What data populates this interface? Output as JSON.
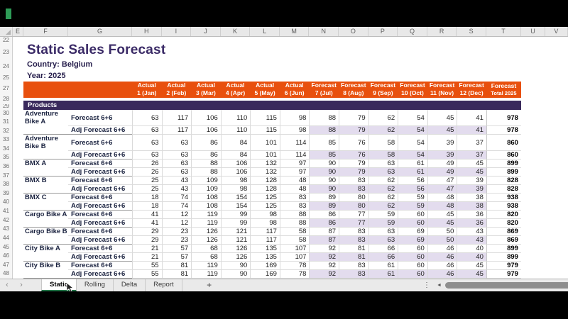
{
  "colors": {
    "accent_orange": "#E8500E",
    "accent_purple": "#3A2A5C",
    "title_text": "#3A2A66",
    "adj_fill": "#E3DCEE",
    "tab_active_green": "#217346"
  },
  "grid": {
    "columns": [
      "E",
      "F",
      "G",
      "H",
      "I",
      "J",
      "K",
      "L",
      "M",
      "N",
      "O",
      "P",
      "Q",
      "R",
      "S",
      "T",
      "U",
      "V"
    ],
    "row_numbers": [
      "22",
      "23",
      "24",
      "25",
      "27",
      "28",
      "29",
      "30",
      "31",
      "32",
      "33",
      "34",
      "35",
      "36",
      "37",
      "38",
      "39",
      "40",
      "41",
      "42",
      "43",
      "44",
      "45",
      "46",
      "47",
      "48"
    ]
  },
  "doc": {
    "title": "Static Sales Forecast",
    "country": "Country: Belgium",
    "year": "Year: 2025",
    "products_label": "Products"
  },
  "table": {
    "column_headers": [
      {
        "line1": "Actual",
        "line2": "1 (Jan)"
      },
      {
        "line1": "Actual",
        "line2": "2 (Feb)"
      },
      {
        "line1": "Actual",
        "line2": "3 (Mar)"
      },
      {
        "line1": "Actual",
        "line2": "4 (Apr)"
      },
      {
        "line1": "Actual",
        "line2": "5 (May)"
      },
      {
        "line1": "Actual",
        "line2": "6 (Jun)"
      },
      {
        "line1": "Forecast",
        "line2": "7 (Jul)"
      },
      {
        "line1": "Forecast",
        "line2": "8 (Aug)"
      },
      {
        "line1": "Forecast",
        "line2": "9 (Sep)"
      },
      {
        "line1": "Forecast",
        "line2": "10 (Oct)"
      },
      {
        "line1": "Forecast",
        "line2": "11 (Nov)"
      },
      {
        "line1": "Forecast",
        "line2": "12 (Dec)"
      }
    ],
    "total_header": {
      "line1": "Forecast",
      "line2": "Total 2025"
    },
    "products": [
      {
        "name": "Adventure Bike A",
        "forecast": {
          "label": "Forecast 6+6",
          "values": [
            63,
            117,
            106,
            110,
            115,
            98,
            88,
            79,
            62,
            54,
            45,
            41
          ],
          "total": 978
        },
        "adjusted": {
          "label": "Adj Forecast 6+6",
          "values": [
            63,
            117,
            106,
            110,
            115,
            98,
            88,
            79,
            62,
            54,
            45,
            41
          ],
          "total": 978
        }
      },
      {
        "name": "Adventure Bike B",
        "forecast": {
          "label": "Forecast 6+6",
          "values": [
            63,
            63,
            86,
            84,
            101,
            114,
            85,
            76,
            58,
            54,
            39,
            37
          ],
          "total": 860
        },
        "adjusted": {
          "label": "Adj Forecast 6+6",
          "values": [
            63,
            63,
            86,
            84,
            101,
            114,
            85,
            76,
            58,
            54,
            39,
            37
          ],
          "total": 860
        }
      },
      {
        "name": "BMX A",
        "forecast": {
          "label": "Forecast 6+6",
          "values": [
            26,
            63,
            88,
            106,
            132,
            97,
            90,
            79,
            63,
            61,
            49,
            45
          ],
          "total": 899
        },
        "adjusted": {
          "label": "Adj Forecast 6+6",
          "values": [
            26,
            63,
            88,
            106,
            132,
            97,
            90,
            79,
            63,
            61,
            49,
            45
          ],
          "total": 899
        }
      },
      {
        "name": "BMX B",
        "forecast": {
          "label": "Forecast 6+6",
          "values": [
            25,
            43,
            109,
            98,
            128,
            48,
            90,
            83,
            62,
            56,
            47,
            39
          ],
          "total": 828
        },
        "adjusted": {
          "label": "Adj Forecast 6+6",
          "values": [
            25,
            43,
            109,
            98,
            128,
            48,
            90,
            83,
            62,
            56,
            47,
            39
          ],
          "total": 828
        }
      },
      {
        "name": "BMX C",
        "forecast": {
          "label": "Forecast 6+6",
          "values": [
            18,
            74,
            108,
            154,
            125,
            83,
            89,
            80,
            62,
            59,
            48,
            38
          ],
          "total": 938
        },
        "adjusted": {
          "label": "Adj Forecast 6+6",
          "values": [
            18,
            74,
            108,
            154,
            125,
            83,
            89,
            80,
            62,
            59,
            48,
            38
          ],
          "total": 938
        }
      },
      {
        "name": "Cargo Bike A",
        "forecast": {
          "label": "Forecast 6+6",
          "values": [
            41,
            12,
            119,
            99,
            98,
            88,
            86,
            77,
            59,
            60,
            45,
            36
          ],
          "total": 820
        },
        "adjusted": {
          "label": "Adj Forecast 6+6",
          "values": [
            41,
            12,
            119,
            99,
            98,
            88,
            86,
            77,
            59,
            60,
            45,
            36
          ],
          "total": 820
        }
      },
      {
        "name": "Cargo Bike B",
        "forecast": {
          "label": "Forecast 6+6",
          "values": [
            29,
            23,
            126,
            121,
            117,
            58,
            87,
            83,
            63,
            69,
            50,
            43
          ],
          "total": 869
        },
        "adjusted": {
          "label": "Adj Forecast 6+6",
          "values": [
            29,
            23,
            126,
            121,
            117,
            58,
            87,
            83,
            63,
            69,
            50,
            43
          ],
          "total": 869
        }
      },
      {
        "name": "City Bike A",
        "forecast": {
          "label": "Forecast 6+6",
          "values": [
            21,
            57,
            68,
            126,
            135,
            107,
            92,
            81,
            66,
            60,
            46,
            40
          ],
          "total": 899
        },
        "adjusted": {
          "label": "Adj Forecast 6+6",
          "values": [
            21,
            57,
            68,
            126,
            135,
            107,
            92,
            81,
            66,
            60,
            46,
            40
          ],
          "total": 899
        }
      },
      {
        "name": "City Bike B",
        "forecast": {
          "label": "Forecast 6+6",
          "values": [
            55,
            81,
            119,
            90,
            169,
            78,
            92,
            83,
            61,
            60,
            46,
            45
          ],
          "total": 979
        },
        "adjusted": {
          "label": "Adj Forecast 6+6",
          "values": [
            55,
            81,
            119,
            90,
            169,
            78,
            92,
            83,
            61,
            60,
            46,
            45
          ],
          "total": 979
        }
      }
    ]
  },
  "sheet_tabs": {
    "nav_left": "‹",
    "nav_right": "›",
    "items": [
      {
        "label": "Static",
        "active": true
      },
      {
        "label": "Rolling",
        "active": false
      },
      {
        "label": "Delta",
        "active": false
      },
      {
        "label": "Report",
        "active": false
      }
    ],
    "add_label": "+",
    "more_label": "⋮",
    "scroll_left_label": "◄"
  }
}
